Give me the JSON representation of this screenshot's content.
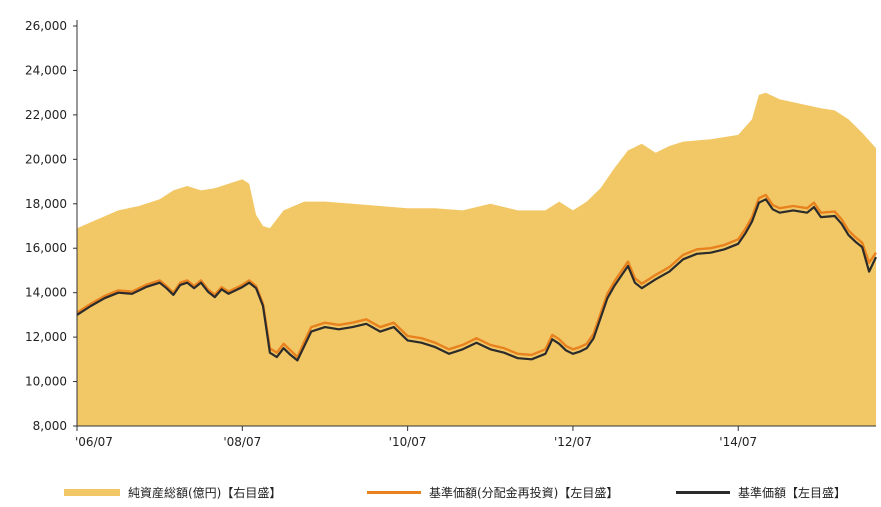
{
  "chart_data": {
    "type": "area",
    "title": "",
    "xlabel": "",
    "ylabel": "",
    "ylim": [
      8000,
      26000
    ],
    "y_ticks": [
      "26,000",
      "24,000",
      "22,000",
      "20,000",
      "18,000",
      "16,000",
      "14,000",
      "12,000",
      "10,000",
      "8,000"
    ],
    "x_tick_labels": [
      "'06/07",
      "'08/07",
      "'10/07",
      "'12/07",
      "'14/07"
    ],
    "x_tick_months": [
      0,
      24,
      48,
      72,
      96
    ],
    "x_range_months": [
      0,
      116
    ],
    "grid": false,
    "legend_position": "bottom",
    "colors": {
      "net_assets": "#F2C866",
      "nav_reinvested": "#E8821E",
      "nav": "#2B2B2B"
    },
    "series": [
      {
        "name": "純資産総額(億円)【右目盛】",
        "kind": "area",
        "points": [
          [
            0,
            16900
          ],
          [
            3,
            17300
          ],
          [
            6,
            17700
          ],
          [
            9,
            17900
          ],
          [
            12,
            18200
          ],
          [
            14,
            18600
          ],
          [
            16,
            18800
          ],
          [
            18,
            18600
          ],
          [
            20,
            18700
          ],
          [
            22,
            18900
          ],
          [
            24,
            19100
          ],
          [
            25,
            18900
          ],
          [
            26,
            17500
          ],
          [
            27,
            17000
          ],
          [
            28,
            16900
          ],
          [
            30,
            17700
          ],
          [
            33,
            18100
          ],
          [
            36,
            18100
          ],
          [
            40,
            18000
          ],
          [
            44,
            17900
          ],
          [
            48,
            17800
          ],
          [
            52,
            17800
          ],
          [
            56,
            17700
          ],
          [
            60,
            18000
          ],
          [
            64,
            17700
          ],
          [
            68,
            17700
          ],
          [
            70,
            18100
          ],
          [
            72,
            17700
          ],
          [
            74,
            18100
          ],
          [
            76,
            18700
          ],
          [
            78,
            19600
          ],
          [
            80,
            20400
          ],
          [
            82,
            20700
          ],
          [
            84,
            20300
          ],
          [
            86,
            20600
          ],
          [
            88,
            20800
          ],
          [
            92,
            20900
          ],
          [
            96,
            21100
          ],
          [
            98,
            21800
          ],
          [
            99,
            22900
          ],
          [
            100,
            23000
          ],
          [
            102,
            22700
          ],
          [
            105,
            22500
          ],
          [
            108,
            22300
          ],
          [
            110,
            22200
          ],
          [
            112,
            21800
          ],
          [
            114,
            21200
          ],
          [
            116,
            20500
          ]
        ]
      },
      {
        "name": "基準価額(分配金再投資)【左目盛】",
        "kind": "line",
        "points": [
          [
            0,
            13100
          ],
          [
            2,
            13500
          ],
          [
            4,
            13850
          ],
          [
            6,
            14100
          ],
          [
            8,
            14050
          ],
          [
            10,
            14350
          ],
          [
            12,
            14550
          ],
          [
            13,
            14300
          ],
          [
            14,
            14000
          ],
          [
            15,
            14450
          ],
          [
            16,
            14550
          ],
          [
            17,
            14300
          ],
          [
            18,
            14550
          ],
          [
            19,
            14150
          ],
          [
            20,
            13900
          ],
          [
            21,
            14250
          ],
          [
            22,
            14050
          ],
          [
            24,
            14350
          ],
          [
            25,
            14550
          ],
          [
            26,
            14300
          ],
          [
            27,
            13500
          ],
          [
            28,
            11500
          ],
          [
            29,
            11300
          ],
          [
            30,
            11700
          ],
          [
            31,
            11400
          ],
          [
            32,
            11100
          ],
          [
            33,
            11800
          ],
          [
            34,
            12450
          ],
          [
            36,
            12650
          ],
          [
            38,
            12550
          ],
          [
            40,
            12650
          ],
          [
            42,
            12800
          ],
          [
            44,
            12450
          ],
          [
            46,
            12650
          ],
          [
            48,
            12050
          ],
          [
            50,
            11950
          ],
          [
            52,
            11750
          ],
          [
            54,
            11450
          ],
          [
            56,
            11650
          ],
          [
            58,
            11950
          ],
          [
            60,
            11650
          ],
          [
            62,
            11500
          ],
          [
            64,
            11250
          ],
          [
            66,
            11200
          ],
          [
            68,
            11450
          ],
          [
            69,
            12100
          ],
          [
            70,
            11900
          ],
          [
            71,
            11600
          ],
          [
            72,
            11450
          ],
          [
            73,
            11550
          ],
          [
            74,
            11700
          ],
          [
            75,
            12150
          ],
          [
            76,
            13050
          ],
          [
            77,
            13950
          ],
          [
            78,
            14500
          ],
          [
            79,
            14950
          ],
          [
            80,
            15400
          ],
          [
            81,
            14650
          ],
          [
            82,
            14400
          ],
          [
            84,
            14800
          ],
          [
            86,
            15150
          ],
          [
            88,
            15700
          ],
          [
            90,
            15950
          ],
          [
            92,
            16000
          ],
          [
            94,
            16150
          ],
          [
            96,
            16400
          ],
          [
            97,
            16850
          ],
          [
            98,
            17400
          ],
          [
            99,
            18250
          ],
          [
            100,
            18400
          ],
          [
            101,
            17950
          ],
          [
            102,
            17800
          ],
          [
            104,
            17900
          ],
          [
            106,
            17800
          ],
          [
            107,
            18050
          ],
          [
            108,
            17600
          ],
          [
            110,
            17650
          ],
          [
            111,
            17300
          ],
          [
            112,
            16800
          ],
          [
            113,
            16500
          ],
          [
            114,
            16250
          ],
          [
            115,
            15350
          ],
          [
            116,
            15800
          ]
        ]
      },
      {
        "name": "基準価額【左目盛】",
        "kind": "line",
        "points": [
          [
            0,
            13000
          ],
          [
            2,
            13400
          ],
          [
            4,
            13750
          ],
          [
            6,
            14000
          ],
          [
            8,
            13950
          ],
          [
            10,
            14250
          ],
          [
            12,
            14450
          ],
          [
            13,
            14200
          ],
          [
            14,
            13900
          ],
          [
            15,
            14350
          ],
          [
            16,
            14450
          ],
          [
            17,
            14200
          ],
          [
            18,
            14450
          ],
          [
            19,
            14050
          ],
          [
            20,
            13800
          ],
          [
            21,
            14150
          ],
          [
            22,
            13950
          ],
          [
            24,
            14250
          ],
          [
            25,
            14450
          ],
          [
            26,
            14200
          ],
          [
            27,
            13400
          ],
          [
            28,
            11300
          ],
          [
            29,
            11100
          ],
          [
            30,
            11500
          ],
          [
            31,
            11200
          ],
          [
            32,
            10950
          ],
          [
            33,
            11600
          ],
          [
            34,
            12250
          ],
          [
            36,
            12450
          ],
          [
            38,
            12350
          ],
          [
            40,
            12450
          ],
          [
            42,
            12600
          ],
          [
            44,
            12250
          ],
          [
            46,
            12450
          ],
          [
            48,
            11850
          ],
          [
            50,
            11750
          ],
          [
            52,
            11550
          ],
          [
            54,
            11250
          ],
          [
            56,
            11450
          ],
          [
            58,
            11750
          ],
          [
            60,
            11450
          ],
          [
            62,
            11300
          ],
          [
            64,
            11050
          ],
          [
            66,
            11000
          ],
          [
            68,
            11250
          ],
          [
            69,
            11900
          ],
          [
            70,
            11700
          ],
          [
            71,
            11400
          ],
          [
            72,
            11250
          ],
          [
            73,
            11350
          ],
          [
            74,
            11500
          ],
          [
            75,
            11950
          ],
          [
            76,
            12850
          ],
          [
            77,
            13750
          ],
          [
            78,
            14300
          ],
          [
            79,
            14750
          ],
          [
            80,
            15200
          ],
          [
            81,
            14450
          ],
          [
            82,
            14200
          ],
          [
            84,
            14600
          ],
          [
            86,
            14950
          ],
          [
            88,
            15500
          ],
          [
            90,
            15750
          ],
          [
            92,
            15800
          ],
          [
            94,
            15950
          ],
          [
            96,
            16200
          ],
          [
            97,
            16650
          ],
          [
            98,
            17200
          ],
          [
            99,
            18050
          ],
          [
            100,
            18200
          ],
          [
            101,
            17750
          ],
          [
            102,
            17600
          ],
          [
            104,
            17700
          ],
          [
            106,
            17600
          ],
          [
            107,
            17850
          ],
          [
            108,
            17400
          ],
          [
            110,
            17450
          ],
          [
            111,
            17100
          ],
          [
            112,
            16600
          ],
          [
            113,
            16300
          ],
          [
            114,
            16050
          ],
          [
            115,
            14950
          ],
          [
            116,
            15600
          ]
        ]
      }
    ]
  },
  "legend": {
    "area_label": "純資産総額(億円)【右目盛】",
    "reinvested_label": "基準価額(分配金再投資)【左目盛】",
    "nav_label": "基準価額【左目盛】"
  }
}
